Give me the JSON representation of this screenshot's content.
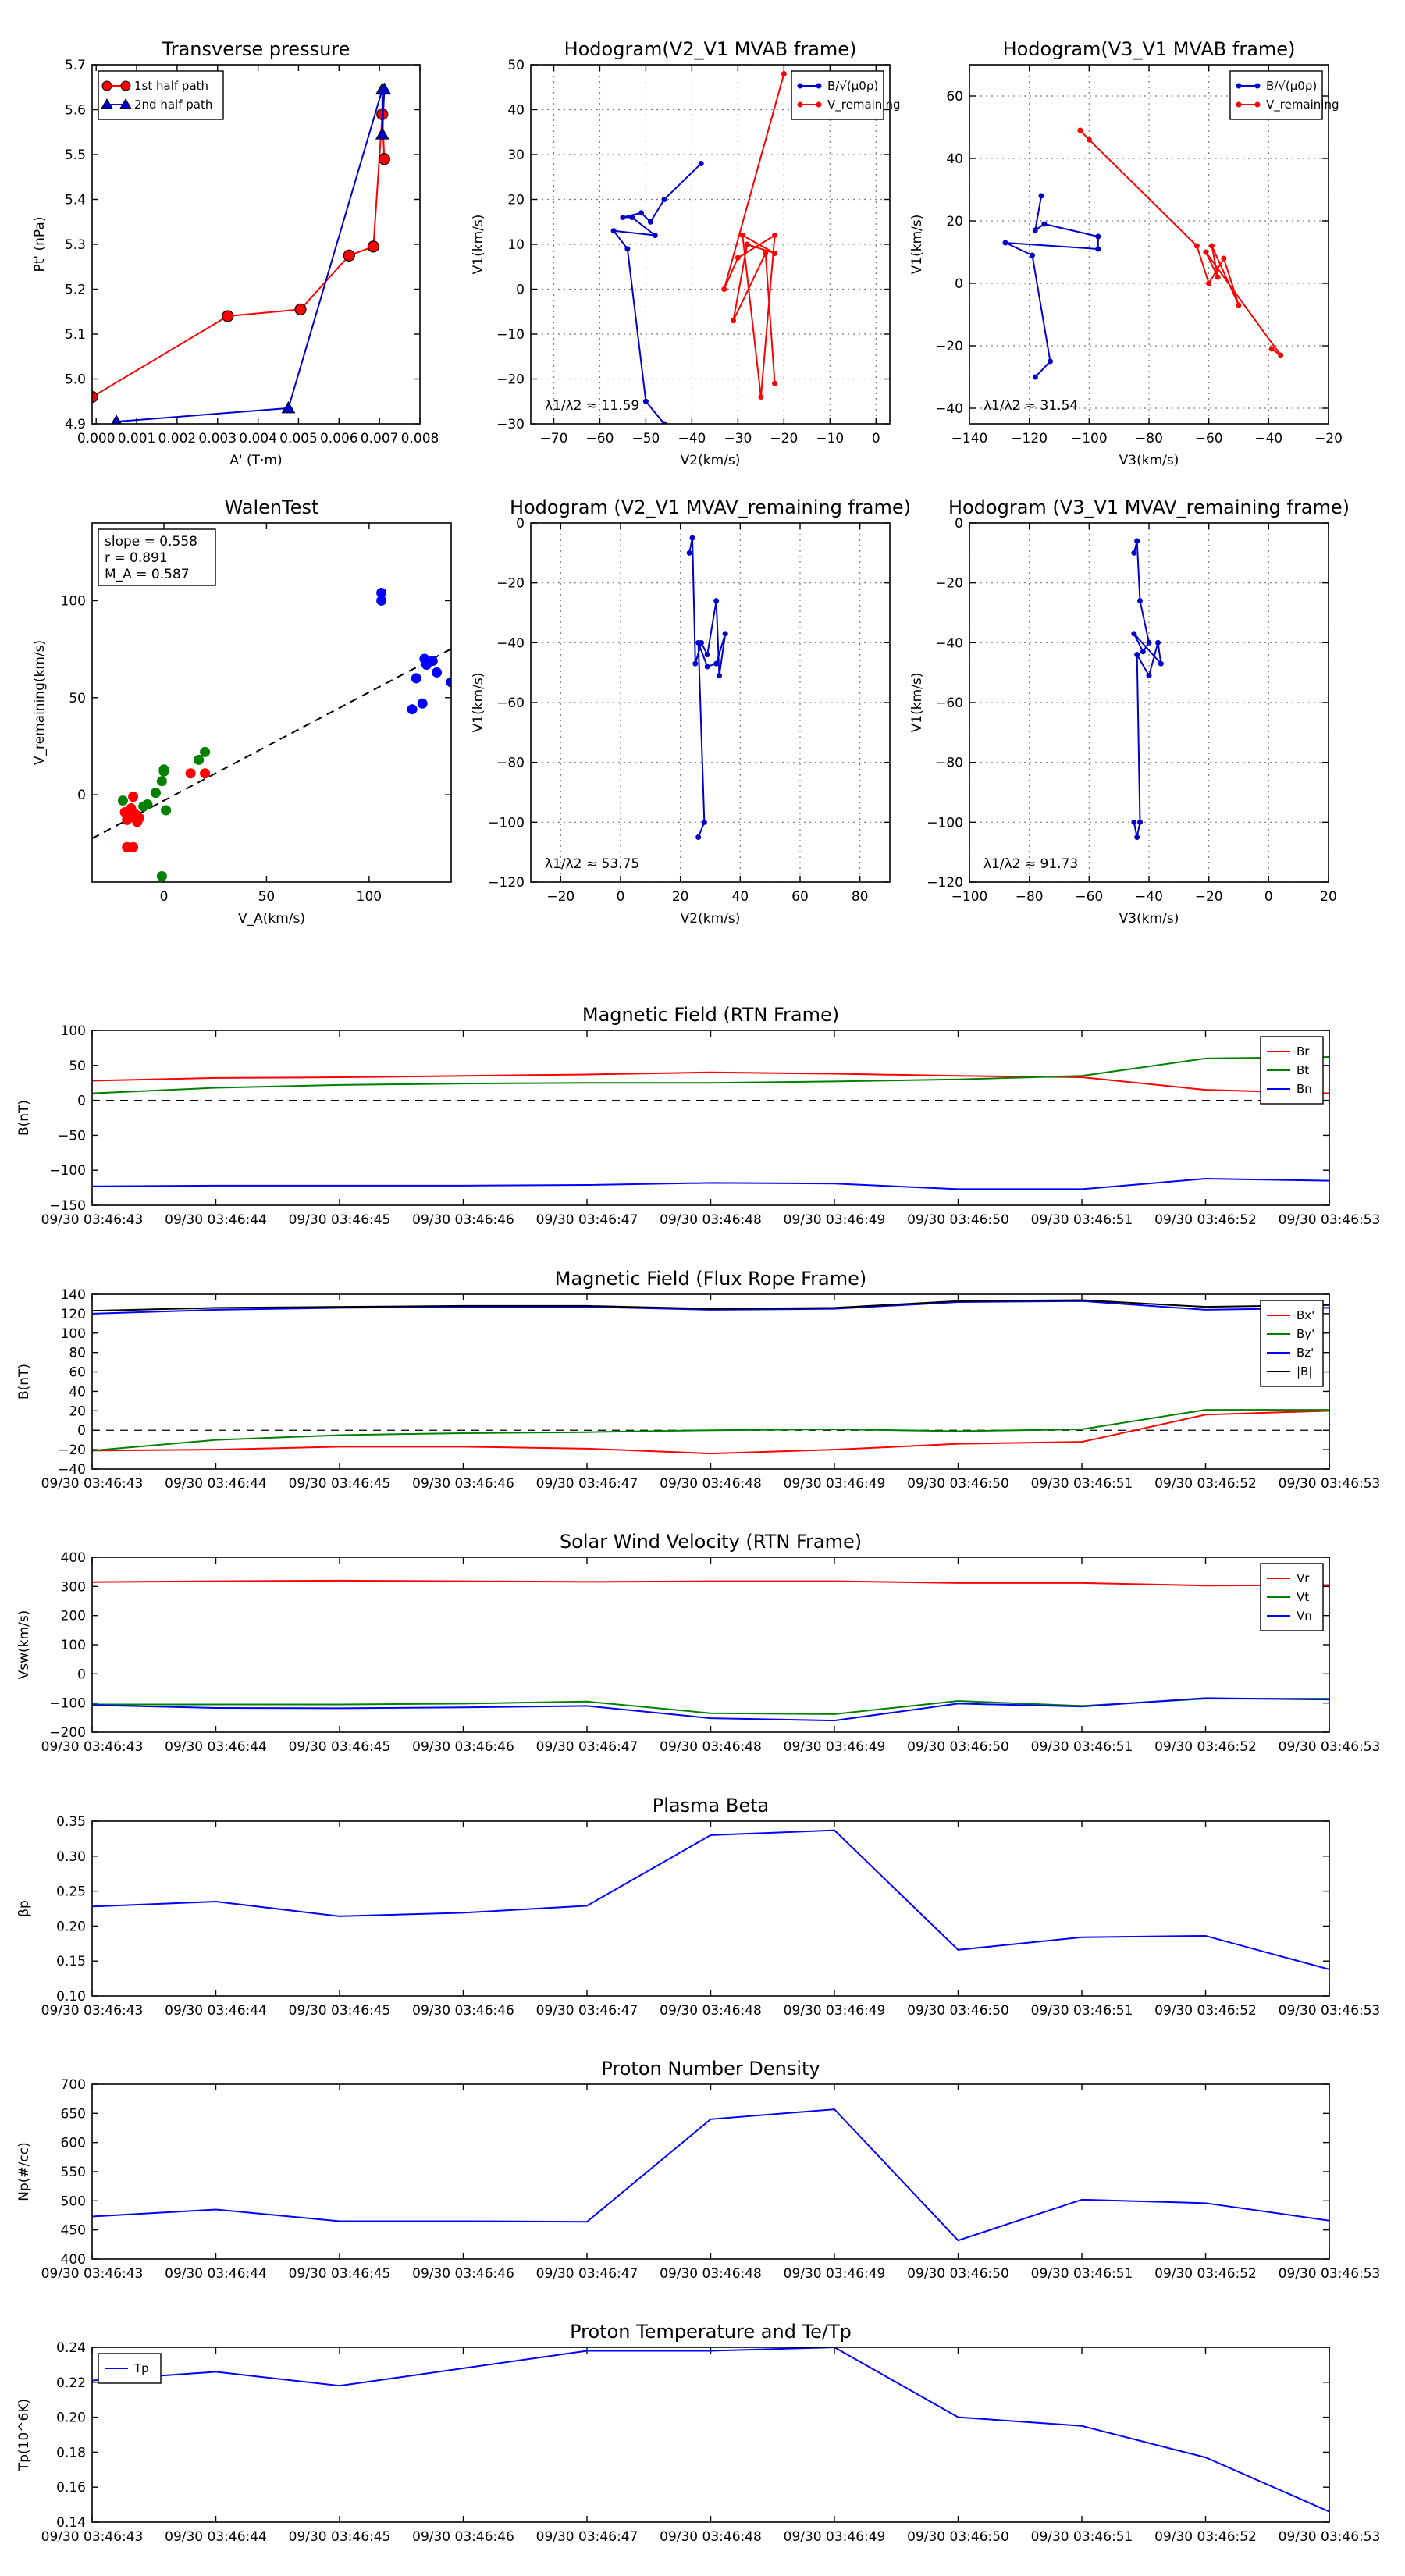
{
  "chart_data": [
    {
      "id": "pt",
      "type": "line",
      "title": "Transverse pressure",
      "xlabel": "A' (T·m)",
      "ylabel": "Pt' (nPa)",
      "xlim": [
        -0.0001,
        0.008
      ],
      "ylim": [
        4.9,
        5.7
      ],
      "xticks": [
        0.0,
        0.001,
        0.002,
        0.003,
        0.004,
        0.005,
        0.006,
        0.007,
        0.008
      ],
      "xtick_labels": [
        "0.000",
        "0.001",
        "0.002",
        "0.003",
        "0.004",
        "0.005",
        "0.006",
        "0.007",
        "0.008"
      ],
      "yticks": [
        4.9,
        5.0,
        5.1,
        5.2,
        5.3,
        5.4,
        5.5,
        5.6,
        5.7
      ],
      "ytick_labels": [
        "4.9",
        "5.0",
        "5.1",
        "5.2",
        "5.3",
        "5.4",
        "5.5",
        "5.6",
        "5.7"
      ],
      "grid": false,
      "legend_loc": "top-left",
      "series": [
        {
          "name": "1st half path",
          "color": "#ff0000",
          "marker": "circle",
          "x": [
            -0.0001,
            0.00325,
            0.00505,
            0.00625,
            0.00685,
            0.00707,
            0.00712
          ],
          "y": [
            4.96,
            5.14,
            5.155,
            5.275,
            5.295,
            5.59,
            5.49
          ]
        },
        {
          "name": "2nd half path",
          "color": "#0000cc",
          "marker": "triangle",
          "x": [
            0.0005,
            0.00475,
            0.00707,
            0.00707,
            0.00712
          ],
          "y": [
            4.905,
            4.935,
            5.645,
            5.545,
            5.645
          ]
        }
      ]
    },
    {
      "id": "hodo_b_v2",
      "type": "scatter",
      "title": "Hodogram(V2_V1 MVAB frame)",
      "xlabel": "V2(km/s)",
      "ylabel": "V1(km/s)",
      "xlim": [
        -75,
        3
      ],
      "ylim": [
        -30,
        50
      ],
      "xticks": [
        -70,
        -60,
        -50,
        -40,
        -30,
        -20,
        -10,
        0
      ],
      "xtick_labels": [
        "−70",
        "−60",
        "−50",
        "−40",
        "−30",
        "−20",
        "−10",
        "0"
      ],
      "yticks": [
        -30,
        -20,
        -10,
        0,
        10,
        20,
        30,
        40,
        50
      ],
      "ytick_labels": [
        "−30",
        "−20",
        "−10",
        "0",
        "10",
        "20",
        "30",
        "40",
        "50"
      ],
      "grid": true,
      "legend_loc": "top-right",
      "annotation": "λ1/λ2 ≈ 11.59",
      "series": [
        {
          "name": "B/√(μ0ρ)",
          "color": "#0000cc",
          "marker": "dot",
          "x": [
            -38,
            -46,
            -49,
            -51,
            -55,
            -53,
            -48,
            -57,
            -54,
            -50,
            -46
          ],
          "y": [
            28,
            20,
            15,
            17,
            16,
            16,
            12,
            13,
            9,
            -25,
            -30
          ]
        },
        {
          "name": "V_remaining",
          "color": "#ff0000",
          "marker": "dot",
          "x": [
            -20,
            -33,
            -30,
            -22,
            -25,
            -29,
            -22,
            -28,
            -31,
            -24,
            -22
          ],
          "y": [
            48,
            0,
            7,
            12,
            -24,
            12,
            8,
            10,
            -7,
            8,
            -21
          ]
        }
      ]
    },
    {
      "id": "hodo_b_v3",
      "type": "scatter",
      "title": "Hodogram(V3_V1 MVAB frame)",
      "xlabel": "V3(km/s)",
      "ylabel": "V1(km/s)",
      "xlim": [
        -140,
        -20
      ],
      "ylim": [
        -45,
        70
      ],
      "xticks": [
        -140,
        -120,
        -100,
        -80,
        -60,
        -40,
        -20
      ],
      "xtick_labels": [
        "−140",
        "−120",
        "−100",
        "−80",
        "−60",
        "−40",
        "−20"
      ],
      "yticks": [
        -40,
        -20,
        0,
        20,
        40,
        60
      ],
      "ytick_labels": [
        "−40",
        "−20",
        "0",
        "20",
        "40",
        "60"
      ],
      "grid": true,
      "legend_loc": "top-right",
      "annotation": "λ1/λ2 ≈ 31.54",
      "series": [
        {
          "name": "B/√(μ0ρ)",
          "color": "#0000cc",
          "marker": "dot",
          "x": [
            -116,
            -118,
            -115,
            -97,
            -97,
            -128,
            -119,
            -113,
            -118
          ],
          "y": [
            28,
            17,
            19,
            15,
            11,
            13,
            9,
            -25,
            -30
          ]
        },
        {
          "name": "V_remaining",
          "color": "#ff0000",
          "marker": "dot",
          "x": [
            -103,
            -100,
            -64,
            -60,
            -55,
            -50,
            -59,
            -57,
            -61,
            -36,
            -39
          ],
          "y": [
            49,
            46,
            12,
            0,
            8,
            -7,
            12,
            2,
            10,
            -23,
            -21
          ]
        }
      ]
    },
    {
      "id": "walen",
      "type": "scatter",
      "title": "WalenTest",
      "xlabel": "V_A(km/s)",
      "ylabel": "V_remaining(km/s)",
      "xlim": [
        -35,
        140
      ],
      "ylim": [
        -45,
        140
      ],
      "xticks": [
        0,
        50,
        100
      ],
      "xtick_labels": [
        "0",
        "50",
        "100"
      ],
      "yticks": [
        0,
        50,
        100
      ],
      "ytick_labels": [
        "0",
        "50",
        "100"
      ],
      "grid": false,
      "stats": [
        "slope = 0.558",
        "r = 0.891",
        "M_A = 0.587"
      ],
      "fit_line": {
        "slope": 0.558,
        "intercept": -3,
        "color": "#000000"
      },
      "series": [
        {
          "name": "red",
          "color": "#ff0000",
          "x": [
            -19,
            -17,
            -15,
            -14,
            -12,
            -16,
            -18,
            -13,
            13,
            20,
            -18,
            -15
          ],
          "y": [
            -9,
            -12,
            -1,
            -10,
            -12,
            -7,
            -13,
            -14,
            11,
            11,
            -27,
            -27
          ]
        },
        {
          "name": "green",
          "color": "#008000",
          "x": [
            -20,
            -10,
            -8,
            -4,
            -1,
            0,
            1,
            -1,
            17,
            20,
            0
          ],
          "y": [
            -3,
            -6,
            -5,
            1,
            7,
            12,
            -8,
            -42,
            18,
            22,
            13
          ]
        },
        {
          "name": "blue",
          "color": "#0000ff",
          "x": [
            106,
            106,
            121,
            123,
            127,
            128,
            131,
            133,
            126,
            140
          ],
          "y": [
            104,
            100,
            44,
            60,
            70,
            67,
            69,
            63,
            47,
            58
          ]
        }
      ]
    },
    {
      "id": "hodo_v2",
      "type": "line",
      "title": "Hodogram (V2_V1 MVAV_remaining frame)",
      "xlabel": "V2(km/s)",
      "ylabel": "V1(km/s)",
      "xlim": [
        -30,
        90
      ],
      "ylim": [
        -120,
        0
      ],
      "xticks": [
        -20,
        0,
        20,
        40,
        60,
        80
      ],
      "xtick_labels": [
        "−20",
        "0",
        "20",
        "40",
        "60",
        "80"
      ],
      "yticks": [
        -120,
        -100,
        -80,
        -60,
        -40,
        -20,
        0
      ],
      "ytick_labels": [
        "−120",
        "−100",
        "−80",
        "−60",
        "−40",
        "−20",
        "0"
      ],
      "grid": true,
      "annotation": "λ1/λ2 ≈ 53.75",
      "series": [
        {
          "name": "hodogram",
          "color": "#0000cc",
          "marker": "dot",
          "x": [
            23,
            24,
            25,
            27,
            29,
            32,
            33,
            35,
            32,
            29,
            26,
            28,
            26
          ],
          "y": [
            -10,
            -5,
            -47,
            -40,
            -44,
            -26,
            -51,
            -37,
            -47,
            -48,
            -40,
            -100,
            -105
          ]
        }
      ]
    },
    {
      "id": "hodo_v3",
      "type": "line",
      "title": "Hodogram (V3_V1 MVAV_remaining frame)",
      "xlabel": "V3(km/s)",
      "ylabel": "V1(km/s)",
      "xlim": [
        -100,
        20
      ],
      "ylim": [
        -120,
        0
      ],
      "xticks": [
        -100,
        -80,
        -60,
        -40,
        -20,
        0,
        20
      ],
      "xtick_labels": [
        "−100",
        "−80",
        "−60",
        "−40",
        "−20",
        "0",
        "20"
      ],
      "yticks": [
        -120,
        -100,
        -80,
        -60,
        -40,
        -20,
        0
      ],
      "ytick_labels": [
        "−120",
        "−100",
        "−80",
        "−60",
        "−40",
        "−20",
        "0"
      ],
      "grid": true,
      "annotation": "λ1/λ2 ≈ 91.73",
      "series": [
        {
          "name": "hodogram",
          "color": "#0000cc",
          "marker": "dot",
          "x": [
            -45,
            -44,
            -43,
            -40,
            -42,
            -45,
            -36,
            -37,
            -40,
            -44,
            -43,
            -44,
            -45
          ],
          "y": [
            -10,
            -6,
            -26,
            -40,
            -43,
            -37,
            -47,
            -40,
            -51,
            -44,
            -100,
            -105,
            -100
          ]
        }
      ]
    },
    {
      "id": "mag_rtn",
      "type": "line",
      "title": "Magnetic Field (RTN Frame)",
      "ylabel": "B(nT)",
      "xlim": [
        0,
        10
      ],
      "ylim": [
        -150,
        100
      ],
      "yticks": [
        -150,
        -100,
        -50,
        0,
        50,
        100
      ],
      "ytick_labels": [
        "−150",
        "−100",
        "−50",
        "0",
        "50",
        "100"
      ],
      "zero_line": true,
      "legend_loc": "top-right",
      "time_labels": [
        "09/30 03:46:43",
        "09/30 03:46:44",
        "09/30 03:46:45",
        "09/30 03:46:46",
        "09/30 03:46:47",
        "09/30 03:46:48",
        "09/30 03:46:49",
        "09/30 03:46:50",
        "09/30 03:46:51",
        "09/30 03:46:52",
        "09/30 03:46:53"
      ],
      "series": [
        {
          "name": "Br",
          "color": "#ff0000",
          "values": [
            28,
            32,
            33,
            35,
            37,
            40,
            38,
            35,
            33,
            15,
            10
          ]
        },
        {
          "name": "Bt",
          "color": "#008000",
          "values": [
            10,
            18,
            22,
            24,
            25,
            25,
            27,
            30,
            35,
            60,
            62
          ]
        },
        {
          "name": "Bn",
          "color": "#0000ff",
          "values": [
            -123,
            -122,
            -122,
            -122,
            -121,
            -118,
            -119,
            -127,
            -127,
            -112,
            -115
          ]
        }
      ]
    },
    {
      "id": "mag_fr",
      "type": "line",
      "title": "Magnetic Field (Flux Rope Frame)",
      "ylabel": "B(nT)",
      "xlim": [
        0,
        10
      ],
      "ylim": [
        -40,
        140
      ],
      "yticks": [
        -40,
        -20,
        0,
        20,
        40,
        60,
        80,
        100,
        120,
        140
      ],
      "ytick_labels": [
        "−40",
        "−20",
        "0",
        "20",
        "40",
        "60",
        "80",
        "100",
        "120",
        "140"
      ],
      "zero_line": true,
      "legend_loc": "top-right",
      "time_labels": [
        "09/30 03:46:43",
        "09/30 03:46:44",
        "09/30 03:46:45",
        "09/30 03:46:46",
        "09/30 03:46:47",
        "09/30 03:46:48",
        "09/30 03:46:49",
        "09/30 03:46:50",
        "09/30 03:46:51",
        "09/30 03:46:52",
        "09/30 03:46:53"
      ],
      "series": [
        {
          "name": "Bx'",
          "color": "#ff0000",
          "values": [
            -21,
            -20,
            -17,
            -17,
            -19,
            -24,
            -20,
            -14,
            -12,
            16,
            20
          ]
        },
        {
          "name": "By'",
          "color": "#008000",
          "values": [
            -21,
            -10,
            -5,
            -3,
            -2,
            0,
            1,
            -1,
            1,
            21,
            21
          ]
        },
        {
          "name": "Bz'",
          "color": "#0000ff",
          "values": [
            120,
            124,
            126,
            127,
            127,
            124,
            125,
            132,
            133,
            124,
            126
          ]
        },
        {
          "name": "|B|",
          "color": "#000000",
          "values": [
            123,
            126,
            127,
            128,
            128,
            125,
            126,
            133,
            134,
            127,
            129
          ]
        }
      ]
    },
    {
      "id": "vsw",
      "type": "line",
      "title": "Solar Wind Velocity (RTN Frame)",
      "ylabel": "Vsw(km/s)",
      "xlim": [
        0,
        10
      ],
      "ylim": [
        -200,
        400
      ],
      "yticks": [
        -200,
        -100,
        0,
        100,
        200,
        300,
        400
      ],
      "ytick_labels": [
        "−200",
        "−100",
        "0",
        "100",
        "200",
        "300",
        "400"
      ],
      "legend_loc": "top-right",
      "time_labels": [
        "09/30 03:46:43",
        "09/30 03:46:44",
        "09/30 03:46:45",
        "09/30 03:46:46",
        "09/30 03:46:47",
        "09/30 03:46:48",
        "09/30 03:46:49",
        "09/30 03:46:50",
        "09/30 03:46:51",
        "09/30 03:46:52",
        "09/30 03:46:53"
      ],
      "series": [
        {
          "name": "Vr",
          "color": "#ff0000",
          "values": [
            315,
            318,
            320,
            318,
            316,
            318,
            318,
            312,
            312,
            303,
            305
          ]
        },
        {
          "name": "Vt",
          "color": "#008000",
          "values": [
            -105,
            -105,
            -105,
            -102,
            -95,
            -135,
            -138,
            -93,
            -110,
            -85,
            -85
          ]
        },
        {
          "name": "Vn",
          "color": "#0000ff",
          "values": [
            -107,
            -117,
            -118,
            -115,
            -110,
            -152,
            -160,
            -102,
            -112,
            -83,
            -88
          ]
        }
      ]
    },
    {
      "id": "beta",
      "type": "line",
      "title": "Plasma Beta",
      "ylabel": "βp",
      "xlim": [
        0,
        10
      ],
      "ylim": [
        0.1,
        0.35
      ],
      "yticks": [
        0.1,
        0.15,
        0.2,
        0.25,
        0.3,
        0.35
      ],
      "ytick_labels": [
        "0.10",
        "0.15",
        "0.20",
        "0.25",
        "0.30",
        "0.35"
      ],
      "time_labels": [
        "09/30 03:46:43",
        "09/30 03:46:44",
        "09/30 03:46:45",
        "09/30 03:46:46",
        "09/30 03:46:47",
        "09/30 03:46:48",
        "09/30 03:46:49",
        "09/30 03:46:50",
        "09/30 03:46:51",
        "09/30 03:46:52",
        "09/30 03:46:53"
      ],
      "series": [
        {
          "name": "beta",
          "color": "#0000ff",
          "values": [
            0.228,
            0.235,
            0.214,
            0.219,
            0.229,
            0.33,
            0.337,
            0.166,
            0.184,
            0.186,
            0.138
          ]
        }
      ]
    },
    {
      "id": "np",
      "type": "line",
      "title": "Proton Number Density",
      "ylabel": "Np(#/cc)",
      "xlim": [
        0,
        10
      ],
      "ylim": [
        400,
        700
      ],
      "yticks": [
        400,
        450,
        500,
        550,
        600,
        650,
        700
      ],
      "ytick_labels": [
        "400",
        "450",
        "500",
        "550",
        "600",
        "650",
        "700"
      ],
      "time_labels": [
        "09/30 03:46:43",
        "09/30 03:46:44",
        "09/30 03:46:45",
        "09/30 03:46:46",
        "09/30 03:46:47",
        "09/30 03:46:48",
        "09/30 03:46:49",
        "09/30 03:46:50",
        "09/30 03:46:51",
        "09/30 03:46:52",
        "09/30 03:46:53"
      ],
      "series": [
        {
          "name": "Np",
          "color": "#0000ff",
          "values": [
            473,
            485,
            465,
            465,
            464,
            640,
            657,
            432,
            502,
            496,
            466
          ]
        }
      ]
    },
    {
      "id": "tp",
      "type": "line",
      "title": "Proton Temperature and Te/Tp",
      "ylabel": "Tp(10^6K)",
      "xlim": [
        0,
        10
      ],
      "ylim": [
        0.14,
        0.24
      ],
      "yticks": [
        0.14,
        0.16,
        0.18,
        0.2,
        0.22,
        0.24
      ],
      "ytick_labels": [
        "0.14",
        "0.16",
        "0.18",
        "0.20",
        "0.22",
        "0.24"
      ],
      "legend_loc": "top-left",
      "time_labels": [
        "09/30 03:46:43",
        "09/30 03:46:44",
        "09/30 03:46:45",
        "09/30 03:46:46",
        "09/30 03:46:47",
        "09/30 03:46:48",
        "09/30 03:46:49",
        "09/30 03:46:50",
        "09/30 03:46:51",
        "09/30 03:46:52",
        "09/30 03:46:53"
      ],
      "series": [
        {
          "name": "Tp",
          "color": "#0000ff",
          "values": [
            0.221,
            0.226,
            0.218,
            0.228,
            0.238,
            0.238,
            0.24,
            0.2,
            0.195,
            0.177,
            0.146
          ]
        }
      ]
    }
  ]
}
